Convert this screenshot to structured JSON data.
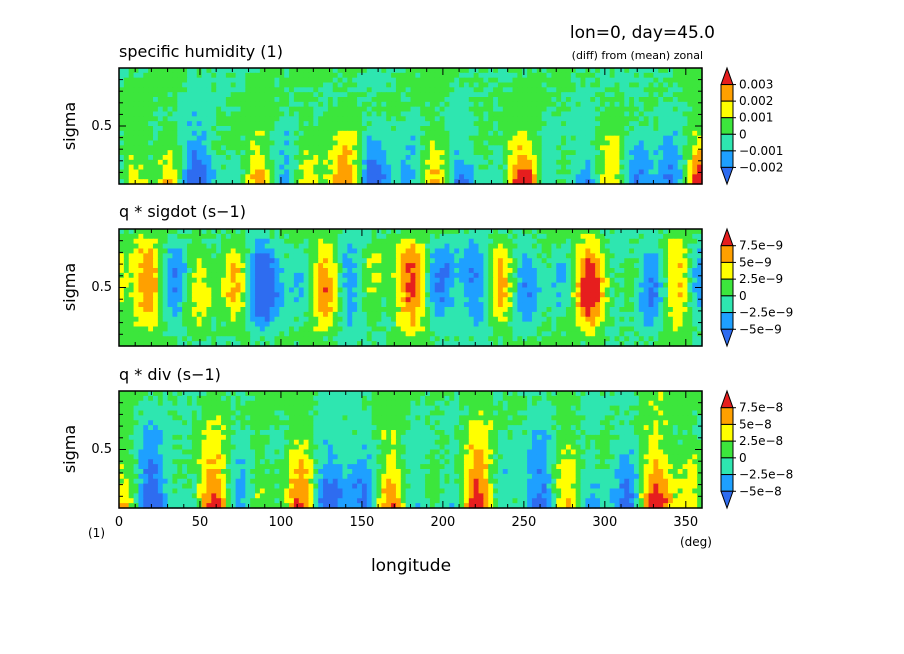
{
  "header": {
    "line1": "lon=0, day=45.0",
    "line2": "(diff) from (mean) zonal"
  },
  "colors": [
    "#2e6cf0",
    "#1ea0ff",
    "#2ee6b0",
    "#3ce63c",
    "#ffff00",
    "#ffa000",
    "#e61e1e"
  ],
  "chart_data": [
    {
      "type": "heatmap",
      "title": "specific humidity (1)",
      "ylabel": "sigma",
      "ytick_labels": [
        "0.5"
      ],
      "xlim": [
        0,
        360
      ],
      "legend_labels": [
        "0.003",
        "0.002",
        "0.001",
        "0",
        "−0.001",
        "−0.002"
      ],
      "levels": [
        -0.002,
        -0.001,
        0,
        0.001,
        0.002,
        0.003
      ]
    },
    {
      "type": "heatmap",
      "title": "q * sigdot (s−1)",
      "ylabel": "sigma",
      "ytick_labels": [
        "0.5"
      ],
      "xlim": [
        0,
        360
      ],
      "legend_labels": [
        "7.5e−9",
        "5e−9",
        "2.5e−9",
        "0",
        "−2.5e−9",
        "−5e−9"
      ],
      "levels": [
        -5e-09,
        -2.5e-09,
        0,
        2.5e-09,
        5e-09,
        7.5e-09
      ]
    },
    {
      "type": "heatmap",
      "title": "q * div (s−1)",
      "ylabel": "sigma",
      "ytick_labels": [
        "0.5"
      ],
      "xlim": [
        0,
        360
      ],
      "legend_labels": [
        "7.5e−8",
        "5e−8",
        "2.5e−8",
        "0",
        "−2.5e−8",
        "−5e−8"
      ],
      "levels": [
        -5e-08,
        -2.5e-08,
        0,
        2.5e-08,
        5e-08,
        7.5e-08
      ]
    }
  ],
  "xaxis": {
    "label": "longitude",
    "unit": "(deg)",
    "left_unit": "(1)",
    "tick_labels": [
      "0",
      "50",
      "100",
      "150",
      "200",
      "250",
      "300",
      "350"
    ],
    "tick_values": [
      0,
      50,
      100,
      150,
      200,
      250,
      300,
      350
    ]
  }
}
